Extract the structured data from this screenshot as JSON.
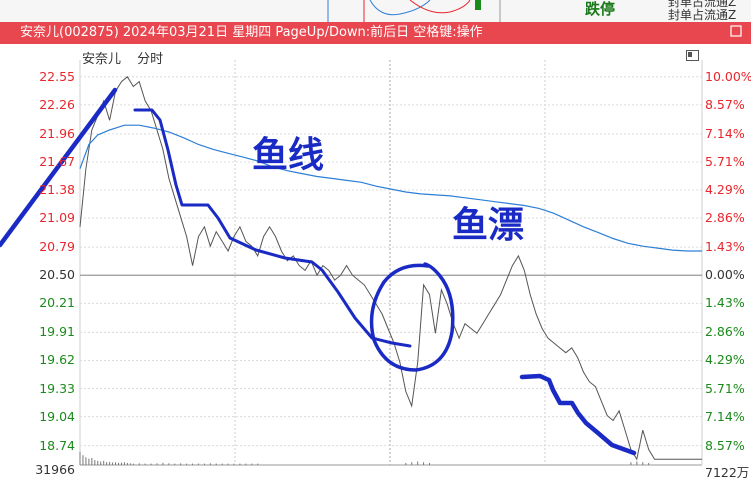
{
  "window": {
    "title": "安奈儿(002875) 2024年03月21日 星期四 PageUp/Down:前后日 空格键:操作",
    "close_label": "口"
  },
  "background": {
    "limit_text": "跌停",
    "note_text_1": "封单占流通Z",
    "note_text_2": "封单占流通Z"
  },
  "chart_header": {
    "stock_name": "安奈儿",
    "mode": "分时"
  },
  "colors": {
    "up": "#e8262c",
    "down": "#1a8a1a",
    "neutral": "#333333",
    "price_line": "#555555",
    "avg_line": "#2d7fd6",
    "annotation": "#1a2ac4",
    "titlebar": "#e8474f"
  },
  "chart_data": {
    "type": "line",
    "title": "",
    "xlabel": "",
    "ylabel": "",
    "prev_close": 20.5,
    "ylim": [
      18.54,
      22.62
    ],
    "price_ticks": [
      {
        "value": "22.55",
        "pct": "10.00%",
        "dir": "up"
      },
      {
        "value": "22.26",
        "pct": "8.57%",
        "dir": "up"
      },
      {
        "value": "21.96",
        "pct": "7.14%",
        "dir": "up"
      },
      {
        "value": "21.67",
        "pct": "5.71%",
        "dir": "up"
      },
      {
        "value": "21.38",
        "pct": "4.29%",
        "dir": "up"
      },
      {
        "value": "21.09",
        "pct": "2.86%",
        "dir": "up"
      },
      {
        "value": "20.79",
        "pct": "1.43%",
        "dir": "up"
      },
      {
        "value": "20.50",
        "pct": "0.00%",
        "dir": "flat"
      },
      {
        "value": "20.21",
        "pct": "1.43%",
        "dir": "down"
      },
      {
        "value": "19.91",
        "pct": "2.86%",
        "dir": "down"
      },
      {
        "value": "19.62",
        "pct": "4.29%",
        "dir": "down"
      },
      {
        "value": "19.33",
        "pct": "5.71%",
        "dir": "down"
      },
      {
        "value": "19.04",
        "pct": "7.14%",
        "dir": "down"
      },
      {
        "value": "18.74",
        "pct": "8.57%",
        "dir": "down"
      }
    ],
    "volume_left_label": "31966",
    "volume_right_label": "7122万",
    "series": [
      {
        "key": "price",
        "values": [
          [
            0,
            21.0
          ],
          [
            4,
            21.6
          ],
          [
            8,
            22.0
          ],
          [
            12,
            22.15
          ],
          [
            16,
            22.3
          ],
          [
            20,
            22.1
          ],
          [
            24,
            22.4
          ],
          [
            28,
            22.5
          ],
          [
            32,
            22.55
          ],
          [
            36,
            22.45
          ],
          [
            40,
            22.5
          ],
          [
            44,
            22.3
          ],
          [
            48,
            22.2
          ],
          [
            52,
            22.0
          ],
          [
            56,
            21.8
          ],
          [
            60,
            21.5
          ],
          [
            64,
            21.3
          ],
          [
            68,
            21.1
          ],
          [
            72,
            20.9
          ],
          [
            76,
            20.6
          ],
          [
            80,
            20.9
          ],
          [
            84,
            21.0
          ],
          [
            88,
            20.8
          ],
          [
            92,
            20.95
          ],
          [
            96,
            20.85
          ],
          [
            100,
            20.75
          ],
          [
            104,
            20.9
          ],
          [
            108,
            21.0
          ],
          [
            112,
            20.85
          ],
          [
            116,
            20.8
          ],
          [
            120,
            20.7
          ],
          [
            124,
            20.9
          ],
          [
            128,
            21.0
          ],
          [
            132,
            20.9
          ],
          [
            136,
            20.75
          ],
          [
            140,
            20.65
          ],
          [
            144,
            20.7
          ],
          [
            148,
            20.6
          ],
          [
            152,
            20.55
          ],
          [
            156,
            20.65
          ],
          [
            160,
            20.5
          ],
          [
            164,
            20.6
          ],
          [
            168,
            20.55
          ],
          [
            172,
            20.45
          ],
          [
            176,
            20.5
          ],
          [
            180,
            20.6
          ],
          [
            184,
            20.5
          ],
          [
            188,
            20.45
          ],
          [
            192,
            20.4
          ],
          [
            196,
            20.3
          ],
          [
            200,
            20.2
          ],
          [
            204,
            20.1
          ],
          [
            208,
            19.95
          ],
          [
            212,
            19.8
          ],
          [
            216,
            19.6
          ],
          [
            220,
            19.3
          ],
          [
            224,
            19.15
          ],
          [
            228,
            19.6
          ],
          [
            232,
            20.4
          ],
          [
            236,
            20.3
          ],
          [
            240,
            19.9
          ],
          [
            244,
            20.35
          ],
          [
            248,
            20.2
          ],
          [
            252,
            20.0
          ],
          [
            256,
            19.85
          ],
          [
            260,
            20.0
          ],
          [
            264,
            19.95
          ],
          [
            268,
            19.9
          ],
          [
            272,
            20.0
          ],
          [
            276,
            20.1
          ],
          [
            280,
            20.2
          ],
          [
            284,
            20.3
          ],
          [
            288,
            20.45
          ],
          [
            292,
            20.6
          ],
          [
            296,
            20.7
          ],
          [
            300,
            20.55
          ],
          [
            304,
            20.3
          ],
          [
            308,
            20.1
          ],
          [
            312,
            19.95
          ],
          [
            316,
            19.85
          ],
          [
            320,
            19.8
          ],
          [
            324,
            19.75
          ],
          [
            328,
            19.7
          ],
          [
            332,
            19.75
          ],
          [
            336,
            19.65
          ],
          [
            340,
            19.5
          ],
          [
            344,
            19.4
          ],
          [
            348,
            19.35
          ],
          [
            352,
            19.2
          ],
          [
            356,
            19.05
          ],
          [
            360,
            19.0
          ],
          [
            364,
            19.1
          ],
          [
            368,
            18.9
          ],
          [
            372,
            18.7
          ],
          [
            376,
            18.6
          ],
          [
            380,
            18.9
          ],
          [
            384,
            18.7
          ],
          [
            388,
            18.6
          ],
          [
            392,
            18.6
          ],
          [
            396,
            18.6
          ],
          [
            400,
            18.6
          ],
          [
            404,
            18.6
          ],
          [
            408,
            18.6
          ],
          [
            412,
            18.6
          ],
          [
            416,
            18.6
          ],
          [
            420,
            18.6
          ]
        ]
      },
      {
        "key": "avg",
        "values": [
          [
            0,
            21.6
          ],
          [
            6,
            21.85
          ],
          [
            12,
            21.95
          ],
          [
            20,
            22.0
          ],
          [
            30,
            22.05
          ],
          [
            40,
            22.05
          ],
          [
            50,
            22.02
          ],
          [
            60,
            21.98
          ],
          [
            70,
            21.92
          ],
          [
            80,
            21.85
          ],
          [
            90,
            21.8
          ],
          [
            100,
            21.76
          ],
          [
            110,
            21.72
          ],
          [
            120,
            21.68
          ],
          [
            130,
            21.62
          ],
          [
            140,
            21.58
          ],
          [
            150,
            21.55
          ],
          [
            160,
            21.52
          ],
          [
            170,
            21.5
          ],
          [
            180,
            21.48
          ],
          [
            190,
            21.46
          ],
          [
            200,
            21.42
          ],
          [
            210,
            21.39
          ],
          [
            220,
            21.36
          ],
          [
            230,
            21.34
          ],
          [
            240,
            21.33
          ],
          [
            250,
            21.32
          ],
          [
            260,
            21.3
          ],
          [
            270,
            21.28
          ],
          [
            280,
            21.26
          ],
          [
            290,
            21.24
          ],
          [
            300,
            21.22
          ],
          [
            310,
            21.19
          ],
          [
            320,
            21.14
          ],
          [
            330,
            21.07
          ],
          [
            340,
            21.0
          ],
          [
            350,
            20.94
          ],
          [
            360,
            20.88
          ],
          [
            370,
            20.83
          ],
          [
            380,
            20.8
          ],
          [
            390,
            20.78
          ],
          [
            400,
            20.76
          ],
          [
            410,
            20.75
          ],
          [
            420,
            20.75
          ]
        ]
      }
    ],
    "volume_bars": [
      [
        0,
        0.95
      ],
      [
        2,
        0.7
      ],
      [
        4,
        0.55
      ],
      [
        6,
        0.45
      ],
      [
        8,
        0.5
      ],
      [
        10,
        0.35
      ],
      [
        12,
        0.3
      ],
      [
        14,
        0.25
      ],
      [
        16,
        0.3
      ],
      [
        18,
        0.2
      ],
      [
        20,
        0.22
      ],
      [
        22,
        0.18
      ],
      [
        24,
        0.2
      ],
      [
        26,
        0.15
      ],
      [
        28,
        0.18
      ],
      [
        30,
        0.2
      ],
      [
        32,
        0.15
      ],
      [
        34,
        0.12
      ],
      [
        36,
        0.1
      ],
      [
        40,
        0.12
      ],
      [
        44,
        0.1
      ],
      [
        48,
        0.1
      ],
      [
        52,
        0.12
      ],
      [
        56,
        0.15
      ],
      [
        60,
        0.12
      ],
      [
        64,
        0.1
      ],
      [
        68,
        0.12
      ],
      [
        72,
        0.1
      ],
      [
        76,
        0.1
      ],
      [
        80,
        0.1
      ],
      [
        84,
        0.1
      ],
      [
        88,
        0.12
      ],
      [
        92,
        0.1
      ],
      [
        96,
        0.1
      ],
      [
        100,
        0.1
      ],
      [
        104,
        0.1
      ],
      [
        108,
        0.1
      ],
      [
        112,
        0.1
      ],
      [
        116,
        0.1
      ],
      [
        120,
        0.1
      ],
      [
        220,
        0.15
      ],
      [
        224,
        0.2
      ],
      [
        228,
        0.25
      ],
      [
        232,
        0.2
      ],
      [
        236,
        0.15
      ],
      [
        372,
        0.2
      ],
      [
        376,
        0.25
      ],
      [
        380,
        0.2
      ],
      [
        384,
        0.15
      ]
    ]
  },
  "annotations": {
    "note1": "鱼线",
    "note2": "鱼漂"
  }
}
